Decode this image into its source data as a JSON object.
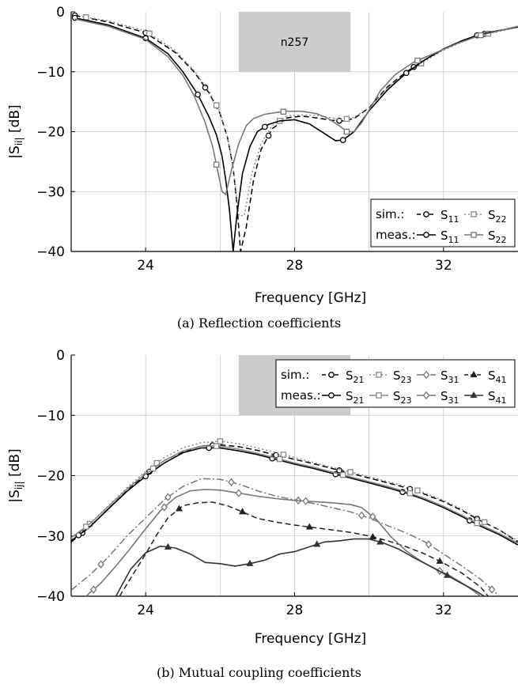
{
  "chart_data": [
    {
      "type": "line",
      "caption": "(a) Reflection coefficients",
      "xlabel": "Frequency [GHz]",
      "ylabel": "|S_ii| [dB]",
      "xlim": [
        22,
        34
      ],
      "ylim": [
        -40,
        0
      ],
      "xticks": [
        "24",
        "28",
        "32"
      ],
      "yticks": [
        "0",
        "−10",
        "−20",
        "−30",
        "−40"
      ],
      "grid": true,
      "band": {
        "label": "n257",
        "x": [
          26.5,
          29.5
        ],
        "y": [
          -10,
          0
        ]
      },
      "legend": {
        "placement": "bottom-right",
        "rows": [
          {
            "label": "sim.:",
            "series": [
              0,
              1
            ]
          },
          {
            "label": "meas.:",
            "series": [
              2,
              3
            ]
          }
        ]
      },
      "series": [
        {
          "name": "S11",
          "sub": "11",
          "group": "sim",
          "color": "#000000",
          "dash": "7,4",
          "marker": "circle",
          "x": [
            22.1,
            23,
            24,
            24.8,
            25.3,
            25.7,
            26.0,
            26.2,
            26.35,
            26.45,
            26.55,
            26.7,
            26.9,
            27.1,
            27.4,
            27.8,
            28.2,
            28.6,
            29.0,
            29.3,
            29.6,
            30,
            30.5,
            31,
            31.5,
            32,
            32.5,
            33,
            34
          ],
          "y": [
            -0.6,
            -1.7,
            -3.5,
            -6.8,
            -10,
            -13.5,
            -17,
            -21,
            -26,
            -32,
            -40,
            -36,
            -28,
            -23,
            -19.5,
            -17.7,
            -17.4,
            -17.7,
            -18.1,
            -18.2,
            -17.8,
            -16,
            -12.5,
            -10,
            -8,
            -6.2,
            -4.8,
            -3.8,
            -2.5
          ],
          "marker_x": [
            22.1,
            24,
            25.6,
            27.3,
            29.2,
            31.2,
            33.1
          ]
        },
        {
          "name": "S22",
          "sub": "22",
          "group": "sim",
          "color": "#888888",
          "dash": "2,3",
          "marker": "square",
          "x": [
            22.3,
            23,
            24,
            24.8,
            25.3,
            25.7,
            26.0,
            26.2,
            26.35,
            26.5,
            26.65,
            26.85,
            27.1,
            27.4,
            27.8,
            28.2,
            28.6,
            29.0,
            29.3,
            29.6,
            30,
            30.5,
            31,
            31.5,
            32,
            32.5,
            33,
            34
          ],
          "y": [
            -0.8,
            -1.5,
            -3.2,
            -6.5,
            -9.8,
            -13.2,
            -16.8,
            -21,
            -26,
            -34,
            -34,
            -27,
            -22,
            -19,
            -17.4,
            -17.2,
            -17.3,
            -17.7,
            -18,
            -17.6,
            -16,
            -12.7,
            -10.2,
            -8.2,
            -6.4,
            -5,
            -3.9,
            -2.6
          ],
          "marker_x": [
            22.4,
            24.1,
            25.9,
            27.6,
            29.4,
            31.4,
            33.2
          ]
        },
        {
          "name": "S11",
          "sub": "11",
          "group": "meas",
          "color": "#000000",
          "dash": "",
          "marker": "circle",
          "x": [
            22.1,
            23,
            24,
            24.6,
            25.0,
            25.4,
            25.7,
            25.9,
            26.05,
            26.15,
            26.25,
            26.35,
            26.45,
            26.6,
            26.8,
            27,
            27.3,
            27.6,
            28,
            28.4,
            28.8,
            29.1,
            29.3,
            29.6,
            30,
            30.5,
            31,
            31.5,
            32,
            32.5,
            33,
            34
          ],
          "y": [
            -1,
            -2.2,
            -4.4,
            -7,
            -10,
            -13.8,
            -17.5,
            -20.5,
            -24,
            -28,
            -33,
            -40,
            -34,
            -27,
            -22.5,
            -20,
            -18.8,
            -18.2,
            -18,
            -18.7,
            -20.3,
            -21.5,
            -21.4,
            -20,
            -16.5,
            -13,
            -10.2,
            -8,
            -6.2,
            -4.8,
            -3.7,
            -2.5
          ],
          "marker_x": [
            22.1,
            24,
            25.4,
            27.2,
            29.3,
            31,
            32.9
          ]
        },
        {
          "name": "S22",
          "sub": "22",
          "group": "meas",
          "color": "#777777",
          "dash": "",
          "marker": "square",
          "x": [
            22.1,
            23,
            24,
            24.6,
            25.0,
            25.3,
            25.6,
            25.8,
            25.95,
            26.05,
            26.15,
            26.3,
            26.5,
            26.7,
            26.9,
            27.2,
            27.5,
            27.8,
            28.2,
            28.6,
            28.9,
            29.2,
            29.4,
            29.6,
            29.8,
            30.0,
            30.3,
            30.7,
            31.2,
            31.8,
            32.4,
            33,
            34
          ],
          "y": [
            -1.2,
            -2.4,
            -4.6,
            -7.5,
            -10.6,
            -14,
            -18.5,
            -22.5,
            -27,
            -30,
            -30.5,
            -26.5,
            -22,
            -19,
            -17.8,
            -17.1,
            -16.8,
            -16.6,
            -16.6,
            -17,
            -17.8,
            -19,
            -20,
            -20,
            -18.5,
            -16.4,
            -13.2,
            -10.5,
            -8.4,
            -6.8,
            -5.2,
            -3.9,
            -2.4
          ],
          "marker_x": [
            25.9,
            27.7,
            29.4,
            31.3,
            33
          ]
        }
      ]
    },
    {
      "type": "line",
      "caption": "(b) Mutual coupling coefficients",
      "xlabel": "Frequency [GHz]",
      "ylabel": "|S_ij| [dB]",
      "xlim": [
        22,
        34
      ],
      "ylim": [
        -40,
        0
      ],
      "xticks": [
        "24",
        "28",
        "32"
      ],
      "yticks": [
        "0",
        "−10",
        "−20",
        "−30",
        "−40"
      ],
      "grid": true,
      "band": {
        "label": "n257",
        "x": [
          26.5,
          29.5
        ],
        "y": [
          -10,
          0
        ]
      },
      "legend": {
        "placement": "top-right",
        "rows": [
          {
            "label": "sim.:",
            "series": [
              0,
              1,
              2,
              3
            ]
          },
          {
            "label": "meas.:",
            "series": [
              4,
              5,
              6,
              7
            ]
          }
        ]
      },
      "series": [
        {
          "name": "S21",
          "sub": "21",
          "group": "sim",
          "color": "#000000",
          "dash": "7,4",
          "marker": "circle",
          "x": [
            22,
            22.5,
            23,
            23.5,
            24,
            24.5,
            25,
            25.5,
            26,
            26.5,
            27,
            27.5,
            28,
            28.5,
            29,
            29.5,
            30,
            30.5,
            31,
            31.5,
            32,
            32.5,
            33,
            33.5,
            34
          ],
          "y": [
            -31,
            -28.5,
            -25.5,
            -22.5,
            -19.8,
            -17.5,
            -16,
            -15.1,
            -14.9,
            -15.2,
            -15.8,
            -16.6,
            -17.3,
            -18,
            -18.8,
            -19.6,
            -20.4,
            -21.2,
            -22,
            -23.1,
            -24.3,
            -25.8,
            -27.5,
            -29,
            -31
          ],
          "marker_x": [
            22.3,
            24.1,
            25.8,
            27.5,
            29.2,
            31.1,
            32.9
          ]
        },
        {
          "name": "S23",
          "sub": "23",
          "group": "sim",
          "color": "#888888",
          "dash": "2,3",
          "marker": "square",
          "x": [
            22,
            22.5,
            23,
            23.5,
            24,
            24.5,
            25,
            25.5,
            26,
            26.5,
            27,
            27.5,
            28,
            28.5,
            29,
            29.5,
            30,
            30.5,
            31,
            31.5,
            32,
            32.5,
            33,
            33.5,
            34
          ],
          "y": [
            -30.5,
            -28,
            -25,
            -22,
            -19.3,
            -17,
            -15.4,
            -14.5,
            -14.3,
            -14.7,
            -15.4,
            -16.2,
            -17,
            -17.8,
            -18.6,
            -19.4,
            -20.2,
            -21,
            -21.8,
            -22.9,
            -24.1,
            -25.6,
            -27.4,
            -29,
            -30.8
          ],
          "marker_x": [
            22.5,
            24.3,
            26,
            27.7,
            29.5,
            31.3,
            33.1
          ]
        },
        {
          "name": "S31",
          "sub": "31",
          "group": "sim",
          "color": "#777777",
          "dash": "9,3,2,3",
          "marker": "diamond",
          "x": [
            22,
            22.5,
            23,
            23.5,
            24,
            24.5,
            25,
            25.5,
            26,
            26.5,
            27,
            27.5,
            28,
            28.5,
            29,
            29.5,
            30,
            30.5,
            31,
            31.5,
            32,
            32.5,
            33,
            33.5
          ],
          "y": [
            -39,
            -36.5,
            -33.5,
            -30,
            -27,
            -24,
            -21.8,
            -20.5,
            -20.6,
            -21.4,
            -22.5,
            -23.4,
            -24,
            -24.6,
            -25.3,
            -26,
            -27,
            -28.3,
            -29.5,
            -31,
            -33,
            -35,
            -37.2,
            -40
          ],
          "marker_x": [
            22.8,
            24.6,
            26.3,
            28.1,
            29.8,
            31.6,
            33.3
          ]
        },
        {
          "name": "S41",
          "sub": "41",
          "group": "sim",
          "color": "#222222",
          "dash": "7,4",
          "marker": "triangle",
          "x": [
            23.3,
            23.6,
            24,
            24.3,
            24.6,
            25,
            25.4,
            25.8,
            26.2,
            26.6,
            27,
            27.5,
            28,
            28.5,
            29,
            29.5,
            30,
            30.5,
            31,
            31.5,
            32,
            32.5,
            33,
            33.2
          ],
          "y": [
            -40,
            -37,
            -33,
            -29.8,
            -27,
            -25,
            -24.5,
            -24.4,
            -25,
            -26,
            -27.1,
            -27.7,
            -28.2,
            -28.6,
            -29,
            -29.4,
            -30,
            -30.8,
            -31.8,
            -33,
            -34.5,
            -36.2,
            -38.5,
            -40
          ],
          "marker_x": [
            24.9,
            26.6,
            28.4,
            30.1,
            31.9
          ]
        },
        {
          "name": "S21",
          "sub": "21",
          "group": "meas",
          "color": "#000000",
          "dash": "",
          "marker": "circle",
          "x": [
            22,
            22.5,
            23,
            23.5,
            24,
            24.5,
            25,
            25.5,
            26,
            26.5,
            27,
            27.5,
            28,
            28.5,
            29,
            29.5,
            30,
            30.5,
            31,
            31.5,
            32,
            32.5,
            33,
            33.5,
            34
          ],
          "y": [
            -30.8,
            -28.5,
            -25.5,
            -22.6,
            -20.1,
            -17.9,
            -16.2,
            -15.4,
            -15.4,
            -15.9,
            -16.5,
            -17.3,
            -18.1,
            -18.8,
            -19.6,
            -20.4,
            -21.2,
            -22,
            -22.9,
            -24,
            -25.3,
            -26.8,
            -28.4,
            -29.8,
            -31.5
          ],
          "marker_x": [
            22.2,
            24,
            25.7,
            27.4,
            29.1,
            30.9,
            32.7
          ]
        },
        {
          "name": "S23",
          "sub": "23",
          "group": "meas",
          "color": "#888888",
          "dash": "",
          "marker": "square",
          "x": [
            22,
            22.5,
            23,
            23.5,
            24,
            24.5,
            25,
            25.5,
            26,
            26.5,
            27,
            27.5,
            28,
            28.5,
            29,
            29.5,
            30,
            30.5,
            31,
            31.5,
            32,
            32.5,
            33,
            33.5,
            34
          ],
          "y": [
            -30.3,
            -28,
            -25.1,
            -22.2,
            -19.7,
            -17.5,
            -15.9,
            -15.1,
            -15.1,
            -15.6,
            -16.3,
            -17.1,
            -17.9,
            -18.6,
            -19.4,
            -20.2,
            -21,
            -21.8,
            -22.7,
            -23.8,
            -25.1,
            -26.6,
            -28.2,
            -29.6,
            -31.2
          ],
          "marker_x": [
            22.4,
            24.2,
            25.9,
            27.6,
            29.3,
            31.1,
            32.9
          ]
        },
        {
          "name": "S31",
          "sub": "31",
          "group": "meas",
          "color": "#777777",
          "dash": "",
          "marker": "diamond",
          "x": [
            22.4,
            22.8,
            23.2,
            23.6,
            24,
            24.4,
            24.8,
            25.2,
            25.6,
            26,
            26.5,
            27,
            27.5,
            28,
            28.5,
            29,
            29.5,
            29.8,
            30.2,
            30.6,
            31,
            31.4,
            31.8,
            32.2,
            32.6,
            33
          ],
          "y": [
            -40,
            -37.8,
            -35,
            -32,
            -28.8,
            -25.8,
            -23.6,
            -22.5,
            -22.3,
            -22.4,
            -22.9,
            -23.4,
            -23.8,
            -24.1,
            -24.3,
            -24.5,
            -24.8,
            -25.3,
            -27.3,
            -30.2,
            -32.5,
            -34.2,
            -35.5,
            -36.7,
            -38.2,
            -40
          ],
          "marker_x": [
            22.6,
            24.5,
            26.5,
            28.3,
            30.1,
            31.9
          ]
        },
        {
          "name": "S41",
          "sub": "41",
          "group": "meas",
          "color": "#333333",
          "dash": "",
          "marker": "triangle",
          "x": [
            23.2,
            23.6,
            24,
            24.4,
            24.8,
            25.2,
            25.6,
            26,
            26.4,
            26.8,
            27.2,
            27.6,
            28,
            28.4,
            28.8,
            29.2,
            29.6,
            30,
            30.4,
            30.8,
            31.2,
            31.6,
            32,
            32.4,
            32.8,
            33.1
          ],
          "y": [
            -40,
            -35.5,
            -32.8,
            -31.7,
            -32,
            -33,
            -34.4,
            -34.6,
            -35,
            -34.6,
            -34,
            -33,
            -32.6,
            -31.8,
            -31,
            -30.8,
            -30.5,
            -30.5,
            -31.2,
            -32.2,
            -33.6,
            -34.9,
            -36.2,
            -37.6,
            -38.9,
            -40
          ],
          "marker_x": [
            24.6,
            26.8,
            28.6,
            30.3,
            32.1
          ]
        }
      ]
    }
  ]
}
